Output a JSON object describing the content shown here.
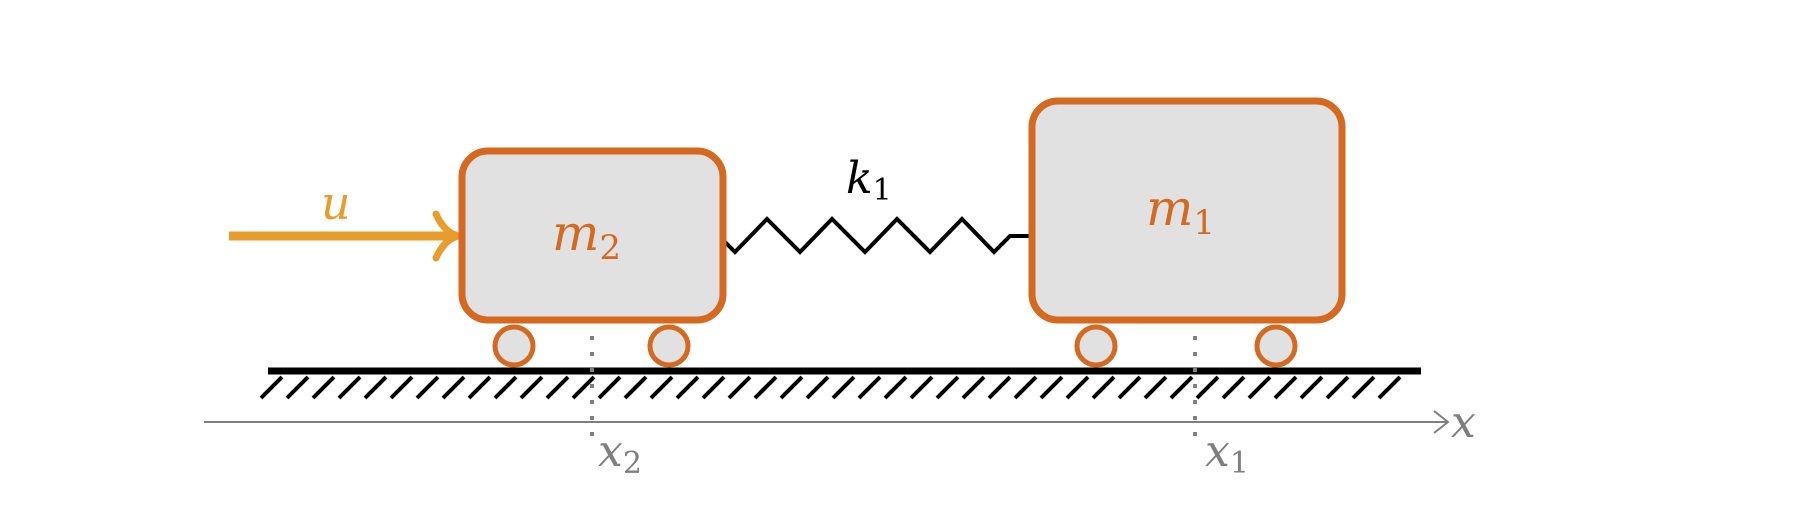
{
  "diagram": {
    "input": {
      "label": "u"
    },
    "mass_left": {
      "label": "m",
      "subscript": "2"
    },
    "mass_right": {
      "label": "m",
      "subscript": "1"
    },
    "spring": {
      "label": "k",
      "subscript": "1"
    },
    "axis": {
      "label": "x"
    },
    "position_left": {
      "label": "x",
      "subscript": "2"
    },
    "position_right": {
      "label": "x",
      "subscript": "1"
    }
  },
  "colors": {
    "mass_stroke": "#d4691f",
    "mass_fill": "#e1e1e1",
    "mass_label": "#d4691f",
    "input": "#e89c2c",
    "spring": "#000000",
    "ground": "#000000",
    "axis": "#7f7f7f"
  }
}
